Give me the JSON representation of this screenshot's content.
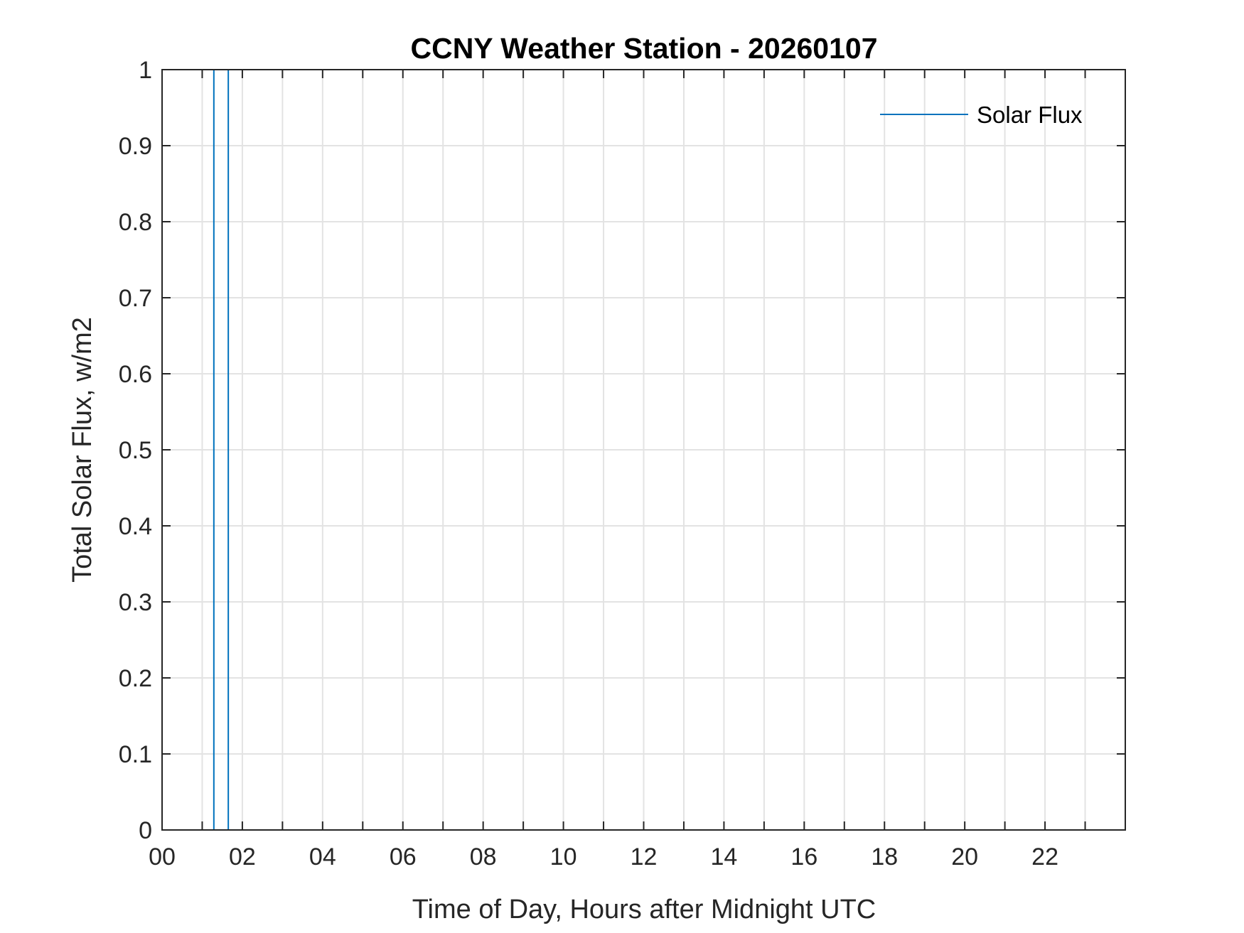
{
  "chart_data": {
    "type": "line",
    "title": "CCNY Weather Station - 20260107",
    "xlabel": "Time of Day, Hours after Midnight UTC",
    "ylabel": "Total Solar Flux, w/m2",
    "xlim": [
      0,
      24
    ],
    "ylim": [
      0,
      1
    ],
    "x_ticks": [
      0,
      2,
      4,
      6,
      8,
      10,
      12,
      14,
      16,
      18,
      20,
      22
    ],
    "x_tick_labels": [
      "00",
      "02",
      "04",
      "06",
      "08",
      "10",
      "12",
      "14",
      "16",
      "18",
      "20",
      "22"
    ],
    "x_minor_grid_step": 1,
    "y_ticks": [
      0,
      0.1,
      0.2,
      0.3,
      0.4,
      0.5,
      0.6,
      0.7,
      0.8,
      0.9,
      1
    ],
    "y_tick_labels": [
      "0",
      "0.1",
      "0.2",
      "0.3",
      "0.4",
      "0.5",
      "0.6",
      "0.7",
      "0.8",
      "0.9",
      "1"
    ],
    "grid": true,
    "legend": {
      "placement": "top-right",
      "boxed": false
    },
    "series": [
      {
        "name": "Solar Flux",
        "color": "#0072BD",
        "segments": [
          {
            "x": [
              1.29,
              1.29
            ],
            "y": [
              0,
              1
            ]
          },
          {
            "x": [
              1.65,
              1.65
            ],
            "y": [
              0,
              1
            ]
          }
        ]
      }
    ]
  }
}
